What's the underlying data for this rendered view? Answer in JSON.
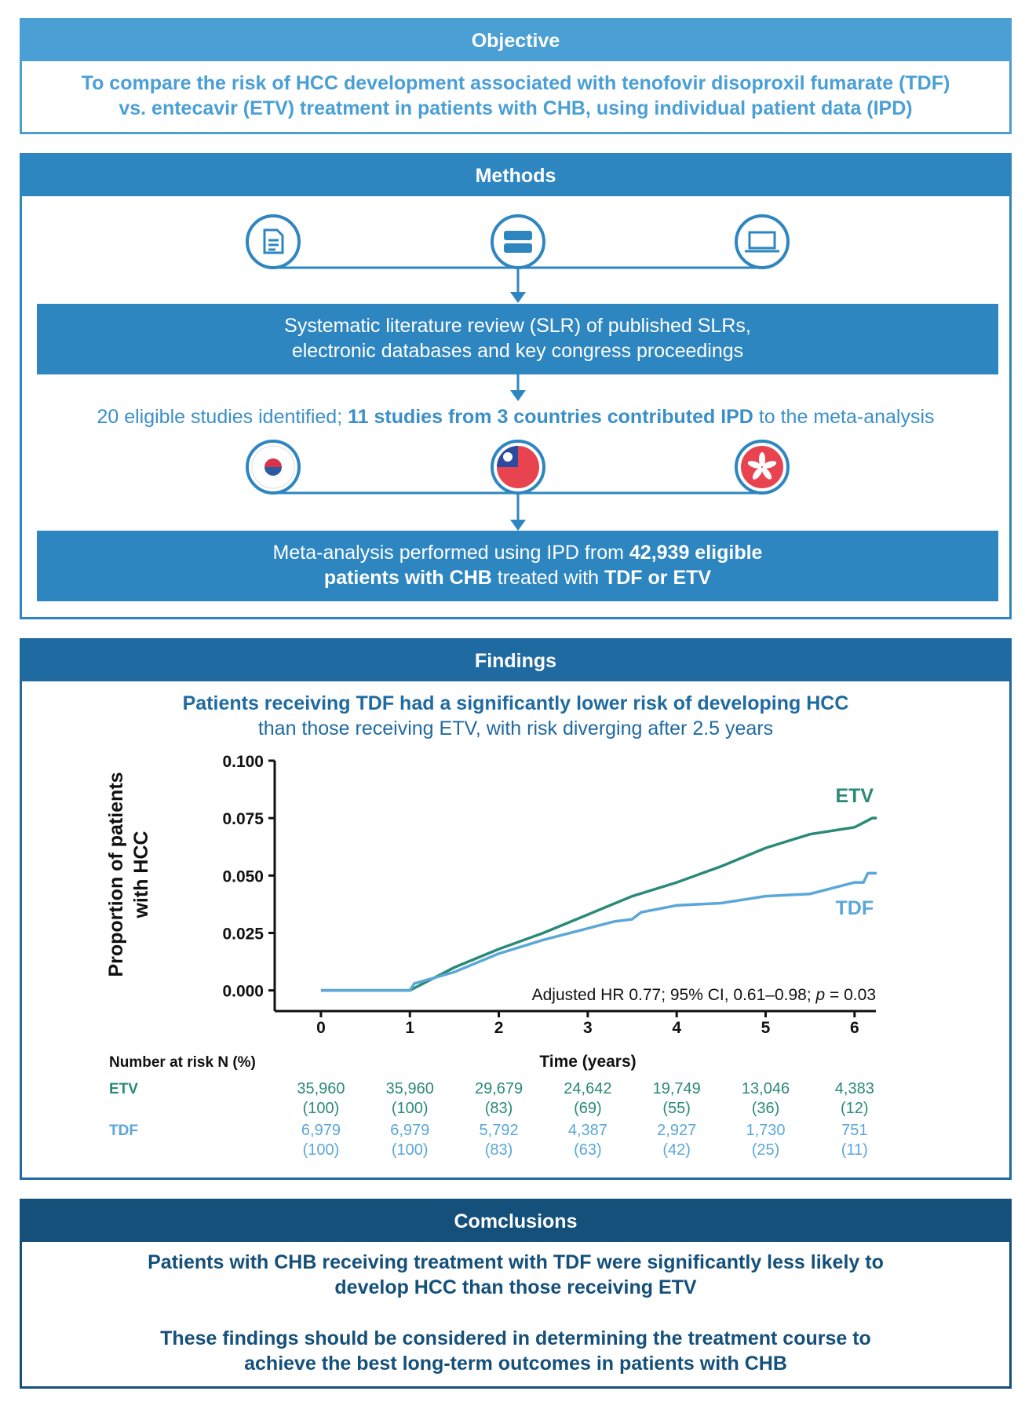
{
  "objective": {
    "heading": "Objective",
    "lines": [
      "To compare the risk of HCC development associated with tenofovir disoproxil fumarate (TDF)",
      "vs. entecavir (ETV) treatment in patients with CHB, using individual patient data (IPD)"
    ]
  },
  "methods": {
    "heading": "Methods",
    "step1_lines": [
      "Systematic literature review (SLR) of published SLRs,",
      "electronic databases and key congress proceedings"
    ],
    "step2_parts": [
      "20 eligible studies identified; ",
      "11 studies from 3 countries contributed IPD",
      " to the meta-analysis"
    ],
    "step3_line1_parts": [
      "Meta-analysis performed using IPD from ",
      "42,939 eligible"
    ],
    "step3_line2_parts": [
      "patients with CHB",
      " treated with ",
      "TDF or ETV"
    ]
  },
  "findings": {
    "heading": "Findings",
    "headline": "Patients receiving TDF had a significantly lower risk of developing HCC",
    "subheadline": "than those receiving ETV, with risk diverging after 2.5 years",
    "risk_table": {
      "title": "Number at risk N (%)",
      "rows": [
        {
          "label": "ETV",
          "counts": [
            "35,960",
            "35,960",
            "29,679",
            "24,642",
            "19,749",
            "13,046",
            "4,383"
          ],
          "percents": [
            "(100)",
            "(100)",
            "(83)",
            "(69)",
            "(55)",
            "(36)",
            "(12)"
          ]
        },
        {
          "label": "TDF",
          "counts": [
            "6,979",
            "6,979",
            "5,792",
            "4,387",
            "2,927",
            "1,730",
            "751"
          ],
          "percents": [
            "(100)",
            "(100)",
            "(83)",
            "(63)",
            "(42)",
            "(25)",
            "(11)"
          ]
        }
      ]
    }
  },
  "chart_data": {
    "type": "line",
    "xlabel": "Time (years)",
    "ylabel_lines": [
      "Proportion of patients",
      "with HCC"
    ],
    "annotation_parts": [
      "Adjusted HR 0.77; 95% CI, 0.61–0.98; ",
      "p",
      " = 0.03"
    ],
    "xlim": [
      -0.52,
      6.24
    ],
    "ylim": [
      -0.009,
      0.1
    ],
    "xticks": [
      0,
      1,
      2,
      3,
      4,
      5,
      6
    ],
    "yticks": [
      {
        "value": 0,
        "label": "0.000"
      },
      0.025,
      {
        "value": 0.05,
        "label": "0.050"
      },
      0.075,
      {
        "value": 0.1,
        "label": "0.100"
      }
    ],
    "series": [
      {
        "name": "ETV",
        "color": "#2a8a78",
        "x": [
          0,
          1,
          1.5,
          2,
          2.5,
          3,
          3.5,
          4,
          4.5,
          5,
          5.5,
          6,
          6.2,
          6.25
        ],
        "values": [
          0,
          0,
          0.01,
          0.018,
          0.025,
          0.033,
          0.041,
          0.047,
          0.054,
          0.062,
          0.068,
          0.071,
          0.075,
          0.075
        ]
      },
      {
        "name": "TDF",
        "color": "#5aa7d8",
        "x": [
          0,
          1,
          1.05,
          1.5,
          2,
          2.5,
          3,
          3.3,
          3.5,
          3.6,
          4,
          4.5,
          5,
          5.5,
          6,
          6.1,
          6.15,
          6.25
        ],
        "values": [
          0,
          0,
          0.003,
          0.008,
          0.016,
          0.022,
          0.027,
          0.03,
          0.031,
          0.034,
          0.037,
          0.038,
          0.041,
          0.042,
          0.047,
          0.047,
          0.051,
          0.051
        ]
      }
    ]
  },
  "conclusions": {
    "heading": "Comclusions",
    "paragraphs": [
      [
        "Patients with CHB receiving treatment with TDF were significantly less likely to",
        "develop HCC than those receiving ETV"
      ],
      [
        "These findings should be considered in determining the treatment course to",
        "achieve the best long-term outcomes in patients with CHB"
      ]
    ]
  }
}
